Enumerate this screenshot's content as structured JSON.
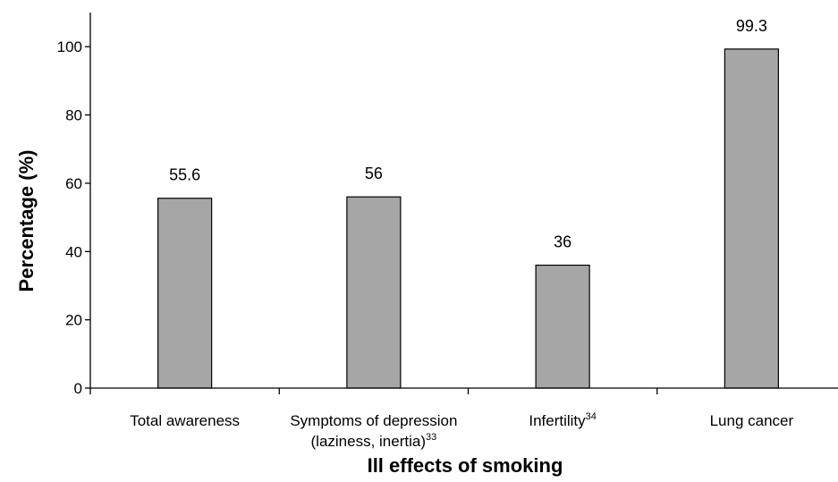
{
  "chart_data": {
    "type": "bar",
    "title": "",
    "xlabel": "Ill effects of smoking",
    "ylabel": "Percentage (%)",
    "ylim": [
      0,
      110
    ],
    "yticks": [
      0,
      20,
      40,
      60,
      80,
      100
    ],
    "grid": false,
    "legend": "none",
    "bar_color": "#a6a6a6",
    "categories": [
      {
        "line1": "Total awareness",
        "line2": "",
        "sup": ""
      },
      {
        "line1": "Symptoms of depression",
        "line2": "(laziness, inertia)",
        "sup": "33"
      },
      {
        "line1": "Infertility",
        "line2": "",
        "sup": "34"
      },
      {
        "line1": "Lung cancer",
        "line2": "",
        "sup": ""
      }
    ],
    "values": [
      55.6,
      56,
      36,
      99.3
    ],
    "data_labels": [
      "55.6",
      "56",
      "36",
      "99.3"
    ]
  }
}
